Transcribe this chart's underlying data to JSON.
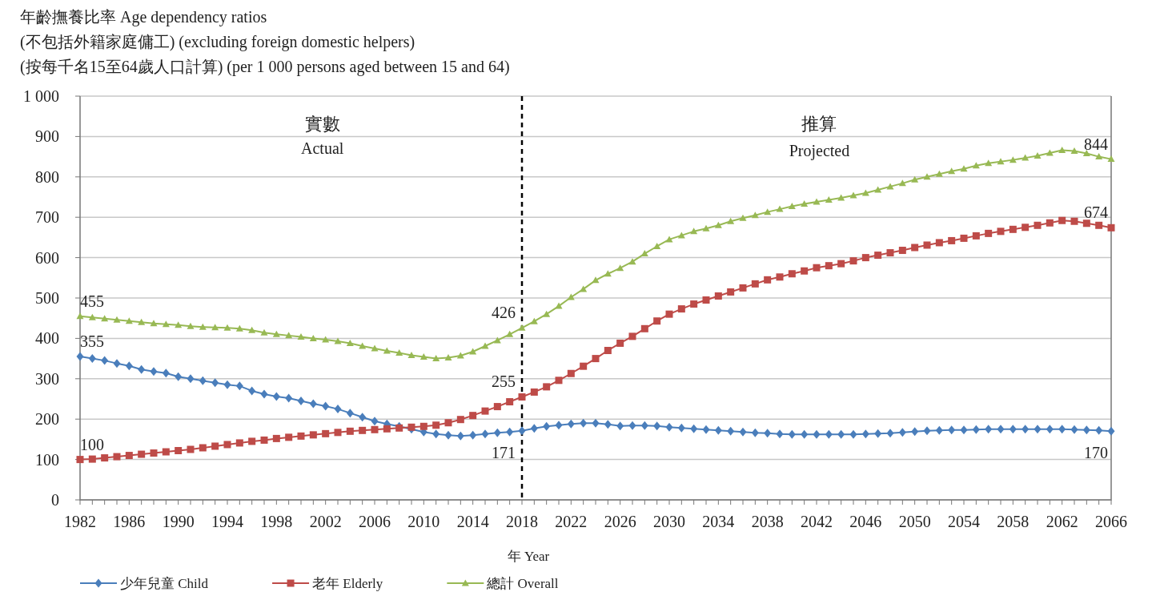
{
  "chart_data": {
    "type": "line",
    "title": "年齡撫養比率 Age dependency  ratios",
    "subtitle": [
      "(不包括外籍家庭傭工) (excluding foreign domestic helpers)",
      "(按每千名15至64歲人口計算) (per 1 000 persons aged between 15 and 64)"
    ],
    "xlabel": "年 Year",
    "x": [
      1982,
      1983,
      1984,
      1985,
      1986,
      1987,
      1988,
      1989,
      1990,
      1991,
      1992,
      1993,
      1994,
      1995,
      1996,
      1997,
      1998,
      1999,
      2000,
      2001,
      2002,
      2003,
      2004,
      2005,
      2006,
      2007,
      2008,
      2009,
      2010,
      2011,
      2012,
      2013,
      2014,
      2015,
      2016,
      2017,
      2018,
      2019,
      2020,
      2021,
      2022,
      2023,
      2024,
      2025,
      2026,
      2027,
      2028,
      2029,
      2030,
      2031,
      2032,
      2033,
      2034,
      2035,
      2036,
      2037,
      2038,
      2039,
      2040,
      2041,
      2042,
      2043,
      2044,
      2045,
      2046,
      2047,
      2048,
      2049,
      2050,
      2051,
      2052,
      2053,
      2054,
      2055,
      2056,
      2057,
      2058,
      2059,
      2060,
      2061,
      2062,
      2063,
      2064,
      2065,
      2066
    ],
    "series": [
      {
        "name": "少年兒童 Child",
        "color": "#4a7ebb",
        "marker": "diamond",
        "values": [
          355,
          350,
          345,
          338,
          332,
          323,
          318,
          314,
          305,
          300,
          295,
          290,
          285,
          282,
          270,
          262,
          256,
          252,
          245,
          238,
          232,
          225,
          215,
          205,
          195,
          188,
          182,
          175,
          168,
          163,
          160,
          158,
          160,
          163,
          166,
          168,
          171,
          177,
          182,
          185,
          188,
          190,
          190,
          187,
          183,
          184,
          184,
          183,
          180,
          178,
          176,
          174,
          172,
          170,
          168,
          166,
          165,
          163,
          162,
          162,
          162,
          162,
          162,
          162,
          163,
          164,
          165,
          167,
          169,
          171,
          172,
          173,
          173,
          174,
          175,
          175,
          175,
          175,
          175,
          175,
          175,
          174,
          173,
          172,
          170
        ]
      },
      {
        "name": "老年 Elderly",
        "color": "#be4b48",
        "marker": "square",
        "values": [
          100,
          101,
          104,
          107,
          110,
          113,
          116,
          119,
          122,
          125,
          129,
          133,
          137,
          141,
          145,
          148,
          152,
          155,
          158,
          161,
          164,
          167,
          170,
          172,
          174,
          176,
          178,
          180,
          182,
          185,
          191,
          199,
          209,
          220,
          231,
          243,
          255,
          267,
          280,
          296,
          313,
          331,
          350,
          370,
          388,
          405,
          424,
          443,
          460,
          473,
          485,
          495,
          505,
          515,
          525,
          535,
          545,
          552,
          560,
          567,
          575,
          580,
          585,
          592,
          600,
          606,
          612,
          618,
          625,
          631,
          637,
          642,
          648,
          654,
          660,
          665,
          670,
          675,
          680,
          686,
          692,
          690,
          685,
          680,
          674
        ]
      },
      {
        "name": "總計 Overall",
        "color": "#98b954",
        "marker": "triangle",
        "values": [
          455,
          452,
          449,
          446,
          443,
          440,
          437,
          435,
          433,
          430,
          428,
          427,
          426,
          424,
          420,
          414,
          410,
          407,
          404,
          400,
          397,
          393,
          388,
          381,
          375,
          369,
          364,
          358,
          354,
          350,
          352,
          357,
          367,
          381,
          395,
          410,
          426,
          442,
          460,
          480,
          502,
          522,
          544,
          560,
          574,
          590,
          610,
          628,
          645,
          655,
          665,
          672,
          680,
          690,
          698,
          705,
          713,
          720,
          727,
          733,
          738,
          743,
          748,
          754,
          760,
          768,
          776,
          784,
          793,
          800,
          807,
          814,
          820,
          828,
          834,
          838,
          842,
          847,
          852,
          859,
          866,
          864,
          858,
          850,
          844
        ]
      }
    ],
    "xlim": [
      1982,
      2066
    ],
    "xticks": [
      1982,
      1986,
      1990,
      1994,
      1998,
      2002,
      2006,
      2010,
      2014,
      2018,
      2022,
      2026,
      2030,
      2034,
      2038,
      2042,
      2046,
      2050,
      2054,
      2058,
      2062,
      2066
    ],
    "ylim": [
      0,
      1000
    ],
    "yticks": [
      0,
      100,
      200,
      300,
      400,
      500,
      600,
      700,
      800,
      900,
      {
        "value": 1000,
        "label": "1 000"
      }
    ],
    "grid": "y",
    "legend": "bottom",
    "ref_lines": [
      {
        "axis": "x",
        "value": 2018,
        "color": "#000000",
        "line_style": "dashed"
      }
    ],
    "annotations": [
      "實數",
      "Actual",
      "推算",
      "Projected",
      {
        "text": "455",
        "x": 1982,
        "y": 455
      },
      {
        "text": "355",
        "x": 1982,
        "y": 355
      },
      {
        "text": "100",
        "x": 1982,
        "y": 100
      },
      {
        "text": "426",
        "x": 2018,
        "y": 426
      },
      {
        "text": "255",
        "x": 2018,
        "y": 255
      },
      {
        "text": "171",
        "x": 2018,
        "y": 171
      },
      {
        "text": "844",
        "x": 2066,
        "y": 844
      },
      {
        "text": "674",
        "x": 2066,
        "y": 674
      },
      {
        "text": "170",
        "x": 2066,
        "y": 170
      }
    ]
  }
}
